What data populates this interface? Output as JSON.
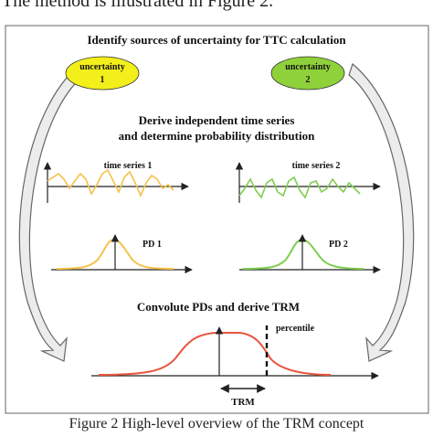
{
  "page": {
    "intro_text": "The method is illustrated in Figure 2.",
    "caption": "Figure 2 High-level overview of the TRM concept"
  },
  "diagram": {
    "heading_top": "Identify sources of uncertainty for TTC calculation",
    "uncertainty_1": {
      "line1": "uncertainty",
      "line2": "1",
      "color": "#f2ef1a"
    },
    "uncertainty_2": {
      "line1": "uncertainty",
      "line2": "2",
      "color": "#8fd13a"
    },
    "heading_middle_1": "Derive independent time series",
    "heading_middle_2": "and determine probability  distribution",
    "time_series_1_label": "time series 1",
    "time_series_2_label": "time series 2",
    "pd1_label": "PD 1",
    "pd2_label": "PD 2",
    "heading_bottom": "Convolute PDs and derive TRM",
    "percentile_label": "percentile",
    "trm_label": "TRM",
    "colors": {
      "series_1": "#f5c24a",
      "series_2": "#7fce4f",
      "result": "#e8553d",
      "axis": "#222222",
      "arrow_fill": "#ececec",
      "arrow_stroke": "#666666"
    }
  }
}
